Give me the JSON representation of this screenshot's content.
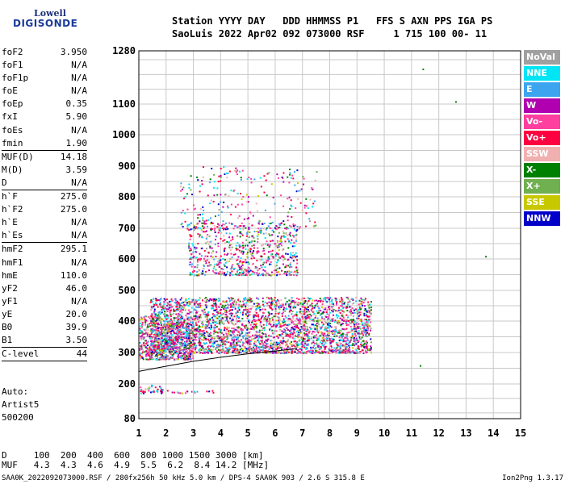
{
  "logo": {
    "line1": "Lowell",
    "line2": "DIGISONDE"
  },
  "header": {
    "row1": "Station YYYY DAY   DDD HHMMSS P1   FFS S AXN PPS IGA PS",
    "row2": "SaoLuis 2022 Apr02 092 073000 RSF     1 715 100 00- 11"
  },
  "params": [
    {
      "label": "foF2",
      "value": "3.950"
    },
    {
      "label": "foF1",
      "value": "N/A"
    },
    {
      "label": "foF1p",
      "value": "N/A"
    },
    {
      "label": "foE",
      "value": "N/A"
    },
    {
      "label": "foEp",
      "value": "0.35"
    },
    {
      "label": "fxI",
      "value": "5.90"
    },
    {
      "label": "foEs",
      "value": "N/A"
    },
    {
      "label": "fmin",
      "value": "1.90",
      "sep": true
    },
    {
      "label": "MUF(D)",
      "value": "14.18"
    },
    {
      "label": "M(D)",
      "value": "3.59"
    },
    {
      "label": "D",
      "value": "N/A",
      "sep": true
    },
    {
      "label": "h`F",
      "value": "275.0"
    },
    {
      "label": "h`F2",
      "value": "275.0"
    },
    {
      "label": "h`E",
      "value": "N/A"
    },
    {
      "label": "h`Es",
      "value": "N/A",
      "sep": true
    },
    {
      "label": "hmF2",
      "value": "295.1"
    },
    {
      "label": "hmF1",
      "value": "N/A"
    },
    {
      "label": "hmE",
      "value": "110.0"
    },
    {
      "label": "yF2",
      "value": "46.0"
    },
    {
      "label": "yF1",
      "value": "N/A"
    },
    {
      "label": "yE",
      "value": "20.0"
    },
    {
      "label": "B0",
      "value": "39.9"
    },
    {
      "label": "B1",
      "value": "3.50",
      "sep": true
    },
    {
      "label": "C-level",
      "value": "44",
      "sep": true
    }
  ],
  "autoscaling": {
    "line1": "Auto:",
    "line2": "Artist5",
    "line3": "500200"
  },
  "legend": [
    {
      "label": "NoVal",
      "color": "#a0a0a0"
    },
    {
      "label": "NNE",
      "color": "#00e5f5"
    },
    {
      "label": "E",
      "color": "#3da5f0"
    },
    {
      "label": "W",
      "color": "#b000b0"
    },
    {
      "label": "Vo-",
      "color": "#ff3fa0"
    },
    {
      "label": "Vo+",
      "color": "#ff0040"
    },
    {
      "label": "SSW",
      "color": "#f0b0b0"
    },
    {
      "label": "X-",
      "color": "#008000"
    },
    {
      "label": "X+",
      "color": "#70b050"
    },
    {
      "label": "SSE",
      "color": "#c8c800"
    },
    {
      "label": "NNW",
      "color": "#0000c8"
    }
  ],
  "dmuf": {
    "d_row": "D     100  200  400  600  800 1000 1500 3000 [km]",
    "muf_row": "MUF   4.3  4.3  4.6  4.9  5.5  6.2  8.4 14.2 [MHz]"
  },
  "footer": {
    "left": "SAA0K_2022092073000.RSF / 280fx256h 50 kHz 5.0 km / DPS-4 SAA0K 903 / 2.6 S 315.8 E",
    "right": "Ion2Png 1.3.17"
  },
  "chart_data": {
    "type": "scatter",
    "title": "",
    "xlabel": "",
    "ylabel": "",
    "x_ticks": [
      1,
      2,
      3,
      4,
      5,
      6,
      7,
      8,
      9,
      10,
      11,
      12,
      13,
      14,
      15
    ],
    "y_ticks": [
      80,
      200,
      300,
      400,
      500,
      600,
      700,
      800,
      900,
      1000,
      1100,
      1280
    ],
    "xlim": [
      1,
      15
    ],
    "ylim": [
      80,
      1280
    ],
    "grid": true,
    "legend_position": "right",
    "yscale": "nonlinear",
    "trace_curve": [
      [
        1.0,
        240
      ],
      [
        1.9,
        255
      ],
      [
        3.0,
        272
      ],
      [
        4.0,
        285
      ],
      [
        5.0,
        296
      ],
      [
        6.0,
        305
      ],
      [
        6.8,
        312
      ]
    ],
    "clusters": [
      {
        "name": "F-layer echo",
        "x": [
          1.4,
          9.5
        ],
        "y": [
          300,
          480
        ],
        "density": 3200
      },
      {
        "name": "low F echo",
        "x": [
          1.0,
          3.0
        ],
        "y": [
          280,
          420
        ],
        "density": 700
      },
      {
        "name": "multi-hop echo",
        "x": [
          2.8,
          6.8
        ],
        "y": [
          550,
          720
        ],
        "density": 700
      },
      {
        "name": "sparse upper echo",
        "x": [
          2.5,
          7.5
        ],
        "y": [
          700,
          900
        ],
        "density": 250
      },
      {
        "name": "low echo",
        "x": [
          1.0,
          2.0
        ],
        "y": [
          170,
          200
        ],
        "density": 45
      },
      {
        "name": "low tail",
        "x": [
          2.0,
          3.8
        ],
        "y": [
          170,
          180
        ],
        "density": 20
      }
    ],
    "isolated_points": [
      [
        11.4,
        1220
      ],
      [
        12.6,
        1110
      ],
      [
        13.7,
        610
      ],
      [
        11.3,
        260
      ]
    ]
  }
}
